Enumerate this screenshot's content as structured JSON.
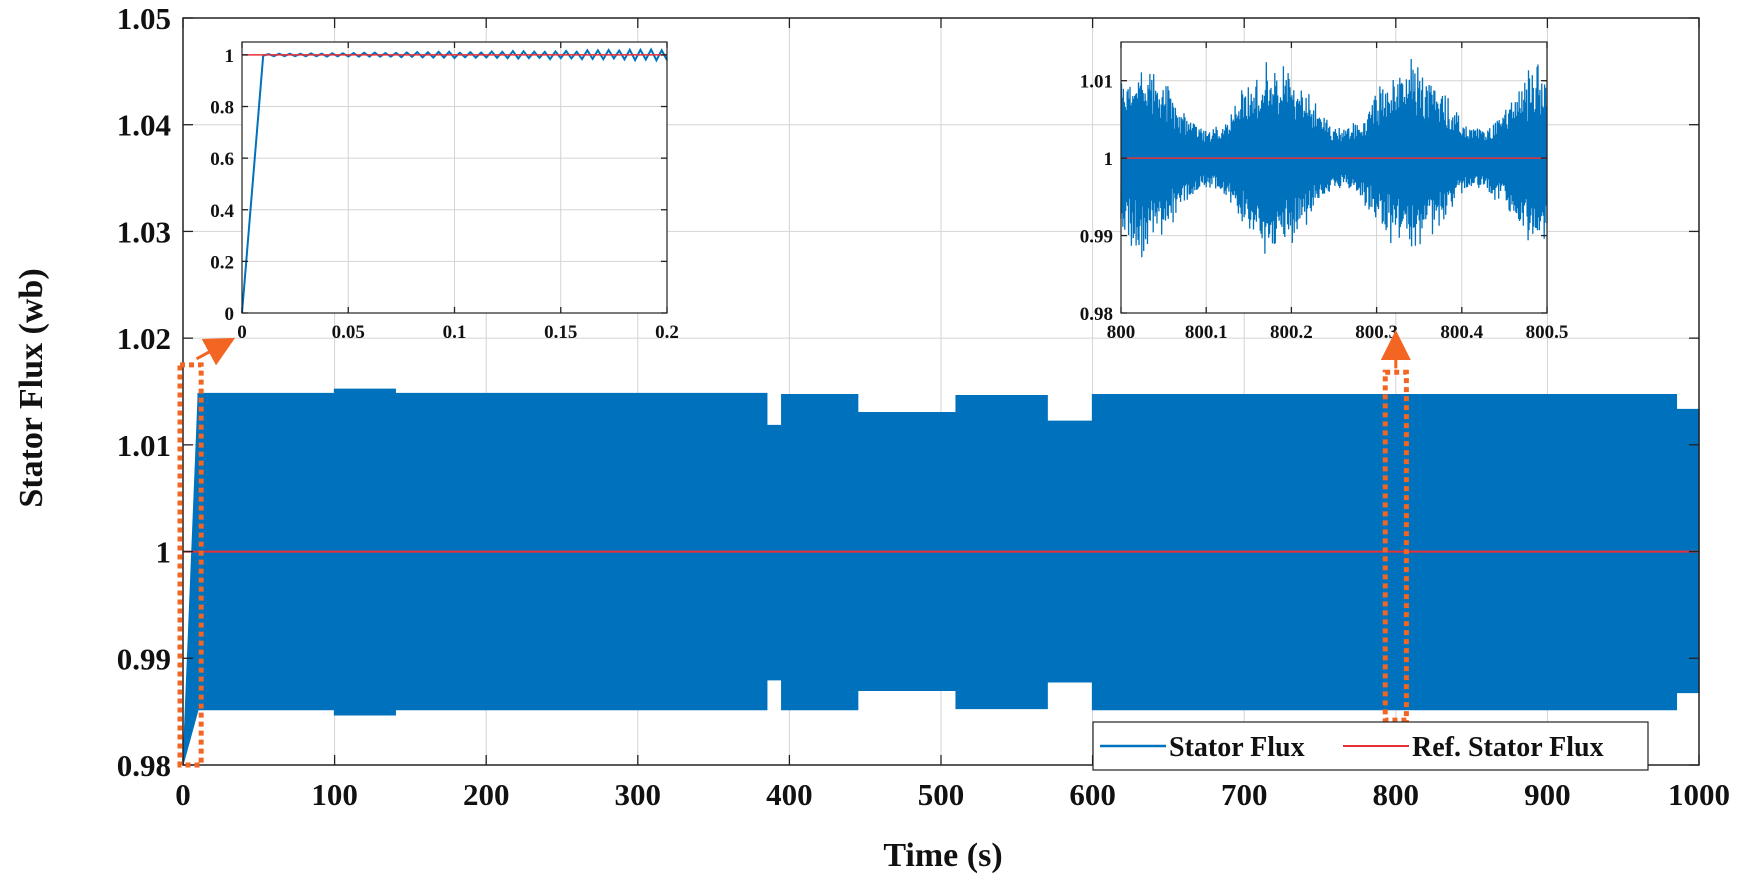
{
  "chart_data": [
    {
      "name": "main",
      "type": "line",
      "title": "",
      "xlabel": "Time (s)",
      "ylabel": "Stator Flux (wb)",
      "xlim": [
        0,
        1000
      ],
      "ylim": [
        0.98,
        1.05
      ],
      "xticks": [
        0,
        100,
        200,
        300,
        400,
        500,
        600,
        700,
        800,
        900,
        1000
      ],
      "xtick_labels": [
        "0",
        "100",
        "200",
        "300",
        "400",
        "500",
        "600",
        "700",
        "800",
        "900",
        "1000"
      ],
      "yticks": [
        0.98,
        0.99,
        1.0,
        1.01,
        1.02,
        1.03,
        1.04,
        1.05
      ],
      "ytick_labels": [
        "0.98",
        "0.99",
        "1",
        "1.01",
        "1.02",
        "1.03",
        "1.04",
        "1.05"
      ],
      "grid": true,
      "legend": {
        "position": "bottom-right",
        "entries": [
          {
            "label": "Stator Flux",
            "color": "#0072BD"
          },
          {
            "label": "Ref. Stator Flux",
            "color": "#E8303A"
          }
        ]
      },
      "series": [
        {
          "name": "Stator Flux",
          "color": "#0072BD",
          "kind": "band",
          "x": [
            10,
            100,
            100,
            140,
            140,
            385,
            385,
            395,
            395,
            445,
            445,
            510,
            510,
            520,
            520,
            570,
            570,
            600,
            600,
            985,
            985,
            1000
          ],
          "upper": [
            1.0148,
            1.0148,
            1.0152,
            1.0152,
            1.0148,
            1.0148,
            1.0118,
            1.0118,
            1.0147,
            1.0147,
            1.013,
            1.013,
            1.0146,
            1.0146,
            1.0146,
            1.0146,
            1.0122,
            1.0122,
            1.0147,
            1.0147,
            1.0133,
            1.0133
          ],
          "lower": [
            0.9852,
            0.9852,
            0.9847,
            0.9847,
            0.9852,
            0.9852,
            0.988,
            0.988,
            0.9852,
            0.9852,
            0.987,
            0.987,
            0.9853,
            0.9853,
            0.9853,
            0.9853,
            0.9878,
            0.9878,
            0.9852,
            0.9852,
            0.9868,
            0.9868
          ]
        },
        {
          "name": "Ref. Stator Flux",
          "color": "#E8303A",
          "x": [
            0,
            1000
          ],
          "y": [
            1.0,
            1.0
          ]
        }
      ],
      "annotations": [
        {
          "type": "zoom-box",
          "x_range": [
            0,
            10
          ],
          "y_range": [
            0.98,
            1.0175
          ],
          "color": "#F26522",
          "target": "inset-left"
        },
        {
          "type": "zoom-box",
          "x_range": [
            795,
            805
          ],
          "y_range": [
            0.9842,
            1.0168
          ],
          "color": "#F26522",
          "target": "inset-right"
        }
      ]
    },
    {
      "name": "inset-left",
      "type": "line",
      "xlim": [
        0,
        0.2
      ],
      "ylim": [
        0,
        1.05
      ],
      "xticks": [
        0,
        0.05,
        0.1,
        0.15,
        0.2
      ],
      "xtick_labels": [
        "0",
        "0.05",
        "0.1",
        "0.15",
        "0.2"
      ],
      "yticks": [
        0,
        0.2,
        0.4,
        0.6,
        0.8,
        1
      ],
      "ytick_labels": [
        "0",
        "0.2",
        "0.4",
        "0.6",
        "0.8",
        "1"
      ],
      "grid": true,
      "series": [
        {
          "name": "Stator Flux",
          "color": "#0072BD",
          "kind": "rise-ripple",
          "rise_end_x": 0.01,
          "level": 1.0,
          "ripple_start": 0.003,
          "ripple_end": 0.018,
          "ripple_period": 0.005
        },
        {
          "name": "Ref. Stator Flux",
          "color": "#E8303A",
          "x": [
            0,
            0.2
          ],
          "y": [
            1.0,
            1.0
          ]
        }
      ]
    },
    {
      "name": "inset-right",
      "type": "line",
      "xlim": [
        800,
        800.5
      ],
      "ylim": [
        0.98,
        1.015
      ],
      "xticks": [
        800,
        800.1,
        800.2,
        800.3,
        800.4,
        800.5
      ],
      "xtick_labels": [
        "800",
        "800.1",
        "800.2",
        "800.3",
        "800.4",
        "800.5"
      ],
      "yticks": [
        0.98,
        0.99,
        1.0,
        1.01
      ],
      "ytick_labels": [
        "0.98",
        "0.99",
        "1",
        "1.01"
      ],
      "grid": true,
      "series": [
        {
          "name": "Stator Flux",
          "color": "#0072BD",
          "kind": "oscillation",
          "center": 1.0,
          "amplitude_max": 0.0135,
          "amplitude_min": 0.003
        },
        {
          "name": "Ref. Stator Flux",
          "color": "#E8303A",
          "x": [
            800,
            800.5
          ],
          "y": [
            1.0,
            1.0
          ]
        }
      ]
    }
  ]
}
